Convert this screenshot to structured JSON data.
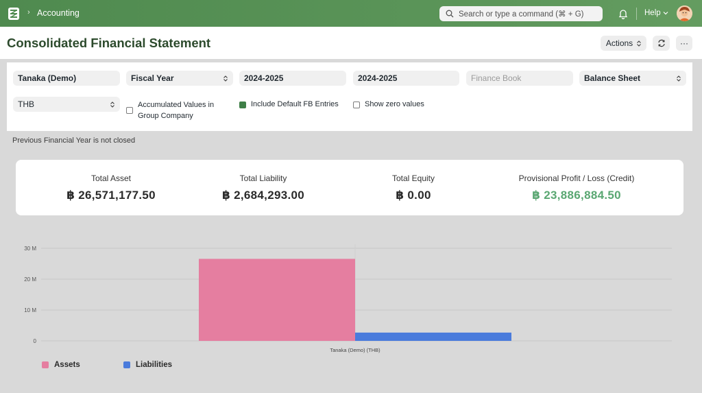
{
  "navbar": {
    "breadcrumb": "Accounting",
    "breadcrumb_sep": "›",
    "search_placeholder": "Search or type a command (⌘ + G)",
    "help_label": "Help"
  },
  "page": {
    "title": "Consolidated Financial Statement",
    "actions_label": "Actions",
    "more_label": "···"
  },
  "filters": {
    "company": "Tanaka (Demo)",
    "filter_based_on": "Fiscal Year",
    "from_fiscal_year": "2024-2025",
    "to_fiscal_year": "2024-2025",
    "finance_book_placeholder": "Finance Book",
    "report": "Balance Sheet",
    "currency": "THB",
    "accumulated_label": "Accumulated Values in Group Company",
    "include_fb_label": "Include Default FB Entries",
    "show_zero_label": "Show zero values"
  },
  "warning": "Previous Financial Year is not closed",
  "summary": [
    {
      "label": "Total Asset",
      "value": "฿ 26,571,177.50"
    },
    {
      "label": "Total Liability",
      "value": "฿ 2,684,293.00"
    },
    {
      "label": "Total Equity",
      "value": "฿ 0.00"
    },
    {
      "label": "Provisional Profit / Loss (Credit)",
      "value": "฿ 23,886,884.50"
    }
  ],
  "colors": {
    "assets": "#e57ea0",
    "liabilities": "#4a7bdc",
    "profit": "#5aa772"
  },
  "chart_data": {
    "type": "bar",
    "categories": [
      "Tanaka (Demo) (THB)"
    ],
    "series": [
      {
        "name": "Assets",
        "values": [
          26571177.5
        ]
      },
      {
        "name": "Liabilities",
        "values": [
          2684293.0
        ]
      }
    ],
    "yticks": [
      0,
      10000000,
      20000000,
      30000000
    ],
    "ytick_labels": [
      "0",
      "10 M",
      "20 M",
      "30 M"
    ],
    "ylim": [
      0,
      30000000
    ],
    "legend_position": "bottom-left"
  }
}
